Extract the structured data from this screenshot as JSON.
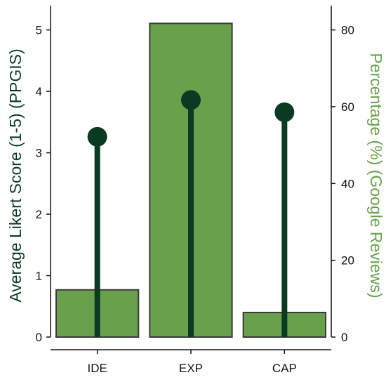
{
  "colors": {
    "bar_fill": "#68a04c",
    "bar_stroke": "#3a3a3a",
    "lollipop": "#0a3b22",
    "left_axis_title": "#0a3b22",
    "right_axis_title": "#68a04c"
  },
  "chart_data": {
    "type": "bar",
    "categories": [
      "IDE",
      "EXP",
      "CAP"
    ],
    "series": [
      {
        "kind": "bar",
        "axis": "right",
        "values": [
          12.3,
          81.7,
          6.4
        ]
      },
      {
        "kind": "lollipop",
        "axis": "left",
        "values": [
          3.26,
          3.86,
          3.66
        ]
      }
    ],
    "ylabel_left": "Average Likert Score (1-5) (PPGIS)",
    "ylabel_right": "Percentage (%) (Google Reviews)",
    "ylim_left": [
      0,
      5.35
    ],
    "ylim_right": [
      0,
      85.6
    ],
    "yticks_left": [
      "0",
      "1",
      "2",
      "3",
      "4",
      "5"
    ],
    "yticks_right": [
      "0",
      "20",
      "40",
      "60",
      "80"
    ],
    "grid": false,
    "legend": "none"
  }
}
